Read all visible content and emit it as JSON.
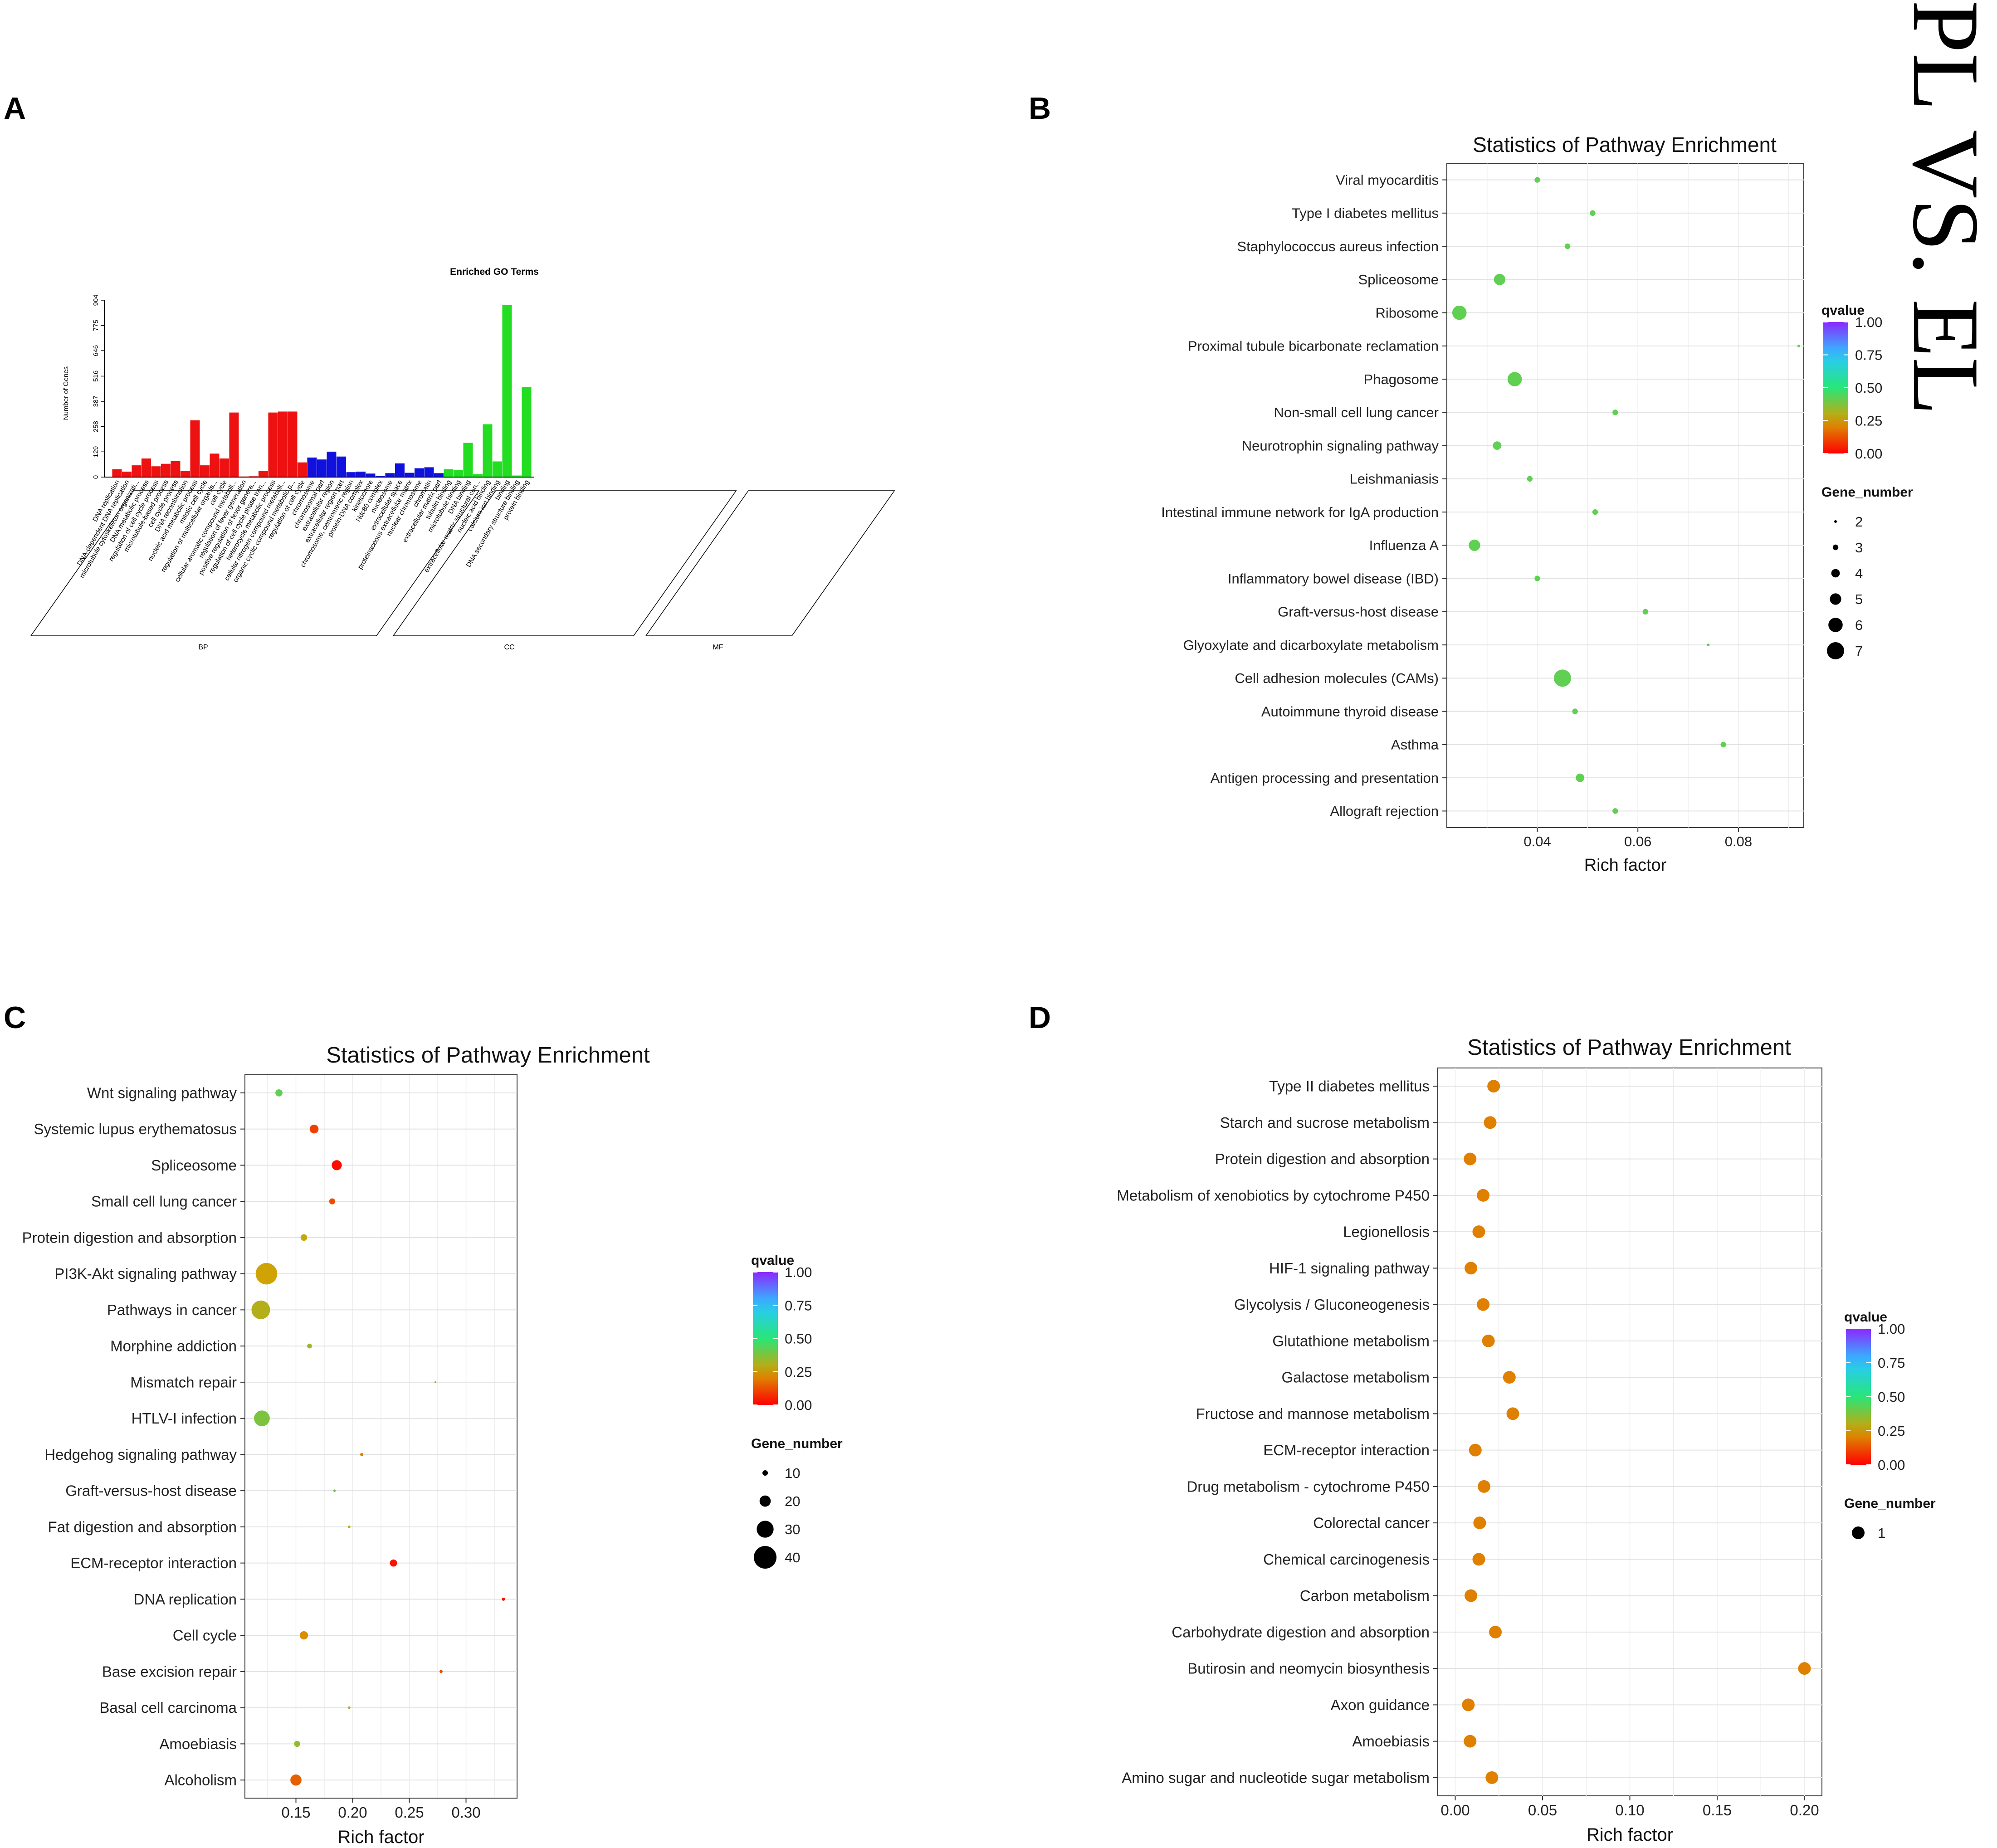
{
  "panels": {
    "a": "A",
    "b": "B",
    "c": "C",
    "d": "D"
  },
  "side_title": "PL VS. EL",
  "colors": {
    "bp": "#ee1111",
    "cc": "#1111dd",
    "mf": "#22dd22"
  },
  "chart_data": [
    {
      "type": "bar",
      "panel": "A",
      "title": "Enriched GO Terms",
      "ylabel": "Number of Genes",
      "yticks": [
        0,
        129,
        258,
        387,
        516,
        646,
        775,
        904
      ],
      "ylim": [
        0,
        904
      ],
      "groups": [
        {
          "name": "BP",
          "categories": [
            "DNA replication",
            "DNA-dependent DNA replication",
            "microtubule cytoskeleton organizati...",
            "DNA metabolic process",
            "regulation of cell cycle process",
            "microtubule-based process",
            "cell cycle process",
            "DNA recombination",
            "nucleic acid metabolic process",
            "mitotic cell cycle",
            "regulation of multicellular organis...",
            "cell cycle",
            "cellular aromatic compound metaboli...",
            "regulation of fever generation",
            "positive regulation of fever genera...",
            "regulation of cell cycle phase tran...",
            "heterocycle metabolic process",
            "cellular nitrogen compound metaboli...",
            "organic cyclic compound metabolic p...",
            "regulation of cell cycle"
          ],
          "values": [
            40,
            28,
            60,
            95,
            55,
            68,
            82,
            30,
            290,
            60,
            120,
            95,
            330,
            3,
            4,
            30,
            330,
            335,
            335,
            75
          ]
        },
        {
          "name": "CC",
          "categories": [
            "chromosome",
            "chromosomal part",
            "extracellular region",
            "extracellular region part",
            "chromosome, centromeric region",
            "protein-DNA complex",
            "kinetochore",
            "Ndc80 complex",
            "nucleosome",
            "extracellular space",
            "proteinaceous extracellular matrix",
            "nuclear chromosome",
            "chromatin",
            "extracellular matrix part"
          ],
          "values": [
            100,
            90,
            130,
            105,
            25,
            28,
            18,
            6,
            20,
            70,
            22,
            45,
            50,
            20
          ]
        },
        {
          "name": "MF",
          "categories": [
            "tubulin binding",
            "microtubule binding",
            "DNA binding",
            "extracellular matrix structural con...",
            "nucleic acid binding",
            "calcium ion binding",
            "binding",
            "DNA secondary structure binding",
            "protein binding"
          ],
          "values": [
            40,
            35,
            175,
            15,
            270,
            80,
            880,
            8,
            460
          ]
        }
      ]
    },
    {
      "type": "scatter",
      "panel": "B",
      "title": "Statistics of Pathway Enrichment",
      "xlabel": "Rich factor",
      "xlim": [
        0.022,
        0.093
      ],
      "xticks": [
        0.04,
        0.06,
        0.08
      ],
      "xtick_labels": [
        "0.04",
        "0.06",
        "0.08"
      ],
      "legend_color_title": "qvalue",
      "legend_color_ticks": [
        "1.00",
        "0.75",
        "0.50",
        "0.25",
        "0.00"
      ],
      "legend_size_title": "Gene_number",
      "legend_size_values": [
        2,
        3,
        4,
        5,
        6,
        7
      ],
      "legend_size_labels": [
        "2",
        "3",
        "4",
        "5",
        "6",
        "7"
      ],
      "terms": [
        "Viral myocarditis",
        "Type I diabetes mellitus",
        "Staphylococcus aureus infection",
        "Spliceosome",
        "Ribosome",
        "Proximal tubule bicarbonate reclamation",
        "Phagosome",
        "Non-small cell lung cancer",
        "Neurotrophin signaling pathway",
        "Leishmaniasis",
        "Intestinal immune network for IgA production",
        "Influenza A",
        "Inflammatory bowel disease (IBD)",
        "Graft-versus-host disease",
        "Glyoxylate and dicarboxylate metabolism",
        "Cell adhesion molecules (CAMs)",
        "Autoimmune thyroid disease",
        "Asthma",
        "Antigen processing and presentation",
        "Allograft rejection"
      ],
      "rich_factor": [
        0.04,
        0.051,
        0.046,
        0.0325,
        0.0245,
        0.092,
        0.0355,
        0.0555,
        0.032,
        0.0385,
        0.0515,
        0.0275,
        0.04,
        0.0615,
        0.074,
        0.045,
        0.0475,
        0.077,
        0.0485,
        0.0555
      ],
      "gene_number": [
        3,
        3,
        3,
        5,
        6,
        2,
        6,
        3,
        4,
        3,
        3,
        5,
        3,
        3,
        2,
        7,
        3,
        3,
        4,
        3
      ],
      "qvalue": [
        0.42,
        0.42,
        0.42,
        0.42,
        0.42,
        0.42,
        0.42,
        0.42,
        0.42,
        0.42,
        0.42,
        0.42,
        0.42,
        0.42,
        0.42,
        0.42,
        0.42,
        0.42,
        0.42,
        0.42
      ]
    },
    {
      "type": "scatter",
      "panel": "C",
      "title": "Statistics of Pathway Enrichment",
      "xlabel": "Rich factor",
      "xlim": [
        0.105,
        0.345
      ],
      "xticks": [
        0.15,
        0.2,
        0.25,
        0.3
      ],
      "xtick_labels": [
        "0.15",
        "0.20",
        "0.25",
        "0.30"
      ],
      "legend_color_title": "qvalue",
      "legend_color_ticks": [
        "1.00",
        "0.75",
        "0.50",
        "0.25",
        "0.00"
      ],
      "legend_size_title": "Gene_number",
      "legend_size_values": [
        10,
        20,
        30,
        40
      ],
      "legend_size_labels": [
        "10",
        "20",
        "30",
        "40"
      ],
      "terms": [
        "Wnt signaling pathway",
        "Systemic lupus erythematosus",
        "Spliceosome",
        "Small cell lung cancer",
        "Protein digestion and absorption",
        "PI3K-Akt signaling pathway",
        "Pathways in cancer",
        "Morphine addiction",
        "Mismatch repair",
        "HTLV-I infection",
        "Hedgehog signaling pathway",
        "Graft-versus-host disease",
        "Fat digestion and absorption",
        "ECM-receptor interaction",
        "DNA replication",
        "Cell cycle",
        "Base excision repair",
        "Basal cell carcinoma",
        "Amoebiasis",
        "Alcoholism"
      ],
      "rich_factor": [
        0.135,
        0.166,
        0.186,
        0.182,
        0.157,
        0.124,
        0.119,
        0.162,
        0.273,
        0.12,
        0.208,
        0.184,
        0.197,
        0.236,
        0.333,
        0.157,
        0.278,
        0.197,
        0.151,
        0.15
      ],
      "gene_number": [
        13,
        16,
        18,
        11,
        12,
        38,
        33,
        9,
        4,
        28,
        6,
        5,
        5,
        13,
        6,
        15,
        6,
        5,
        11,
        20
      ],
      "qvalue": [
        0.42,
        0.1,
        0.02,
        0.12,
        0.28,
        0.26,
        0.3,
        0.33,
        0.3,
        0.38,
        0.2,
        0.38,
        0.3,
        0.03,
        0.02,
        0.22,
        0.12,
        0.3,
        0.35,
        0.15
      ]
    },
    {
      "type": "scatter",
      "panel": "D",
      "title": "Statistics of Pathway Enrichment",
      "xlabel": "Rich factor",
      "xlim": [
        -0.01,
        0.21
      ],
      "xticks": [
        0.0,
        0.05,
        0.1,
        0.15,
        0.2
      ],
      "xtick_labels": [
        "0.00",
        "0.05",
        "0.10",
        "0.15",
        "0.20"
      ],
      "legend_color_title": "qvalue",
      "legend_color_ticks": [
        "1.00",
        "0.75",
        "0.50",
        "0.25",
        "0.00"
      ],
      "legend_size_title": "Gene_number",
      "legend_size_values": [
        1
      ],
      "legend_size_labels": [
        "1"
      ],
      "terms": [
        "Type II diabetes mellitus",
        "Starch and sucrose metabolism",
        "Protein digestion and absorption",
        "Metabolism of xenobiotics by cytochrome P450",
        "Legionellosis",
        "HIF-1 signaling pathway",
        "Glycolysis / Gluconeogenesis",
        "Glutathione metabolism",
        "Galactose metabolism",
        "Fructose and mannose metabolism",
        "ECM-receptor interaction",
        "Drug metabolism - cytochrome P450",
        "Colorectal cancer",
        "Chemical carcinogenesis",
        "Carbon metabolism",
        "Carbohydrate digestion and absorption",
        "Butirosin and neomycin biosynthesis",
        "Axon guidance",
        "Amoebiasis",
        "Amino sugar and nucleotide sugar metabolism"
      ],
      "rich_factor": [
        0.022,
        0.02,
        0.0085,
        0.016,
        0.0135,
        0.009,
        0.016,
        0.019,
        0.031,
        0.033,
        0.0115,
        0.0165,
        0.014,
        0.0135,
        0.009,
        0.023,
        0.2,
        0.0075,
        0.0085,
        0.021
      ],
      "gene_number": [
        1,
        1,
        1,
        1,
        1,
        1,
        1,
        1,
        1,
        1,
        1,
        1,
        1,
        1,
        1,
        1,
        1,
        1,
        1,
        1
      ],
      "qvalue": [
        0.2,
        0.2,
        0.2,
        0.2,
        0.2,
        0.2,
        0.2,
        0.2,
        0.2,
        0.2,
        0.2,
        0.2,
        0.2,
        0.2,
        0.2,
        0.2,
        0.2,
        0.2,
        0.2,
        0.2
      ]
    }
  ]
}
